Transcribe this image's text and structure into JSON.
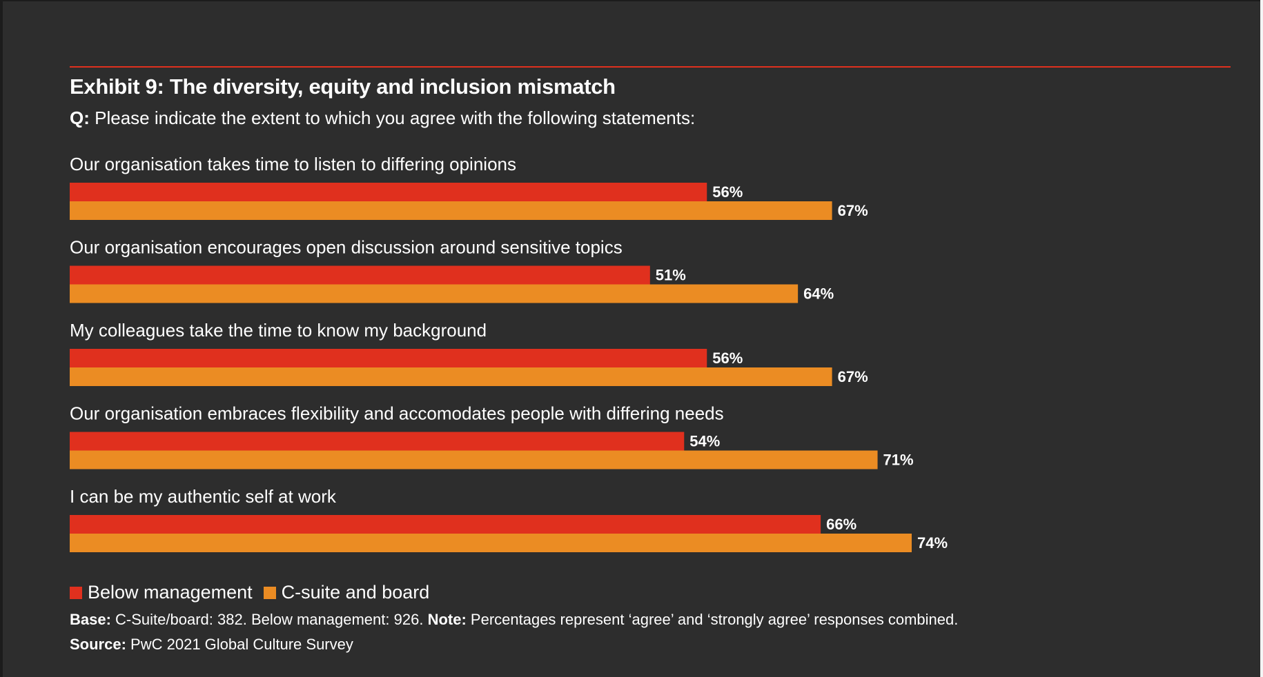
{
  "colors": {
    "background": "#2d2d2d",
    "rule": "#e0301e",
    "below_management": "#e0301e",
    "csuite_board": "#eb8c23",
    "text": "#ffffff"
  },
  "header": {
    "title": "Exhibit 9: The diversity, equity and inclusion mismatch",
    "question_prefix": "Q:",
    "question_text": "Please indicate the extent to which you agree with the following statements:"
  },
  "chart_data": {
    "type": "bar",
    "orientation": "horizontal",
    "categories": [
      "Our organisation takes time to listen to differing opinions",
      "Our organisation encourages open discussion around sensitive topics",
      "My colleagues take the time to know my background",
      "Our organisation embraces flexibility and accomodates people with differing needs",
      "I can be my authentic self at work"
    ],
    "series": [
      {
        "name": "Below management",
        "values": [
          56,
          51,
          56,
          54,
          66
        ]
      },
      {
        "name": "C-suite and board",
        "values": [
          67,
          64,
          67,
          71,
          74
        ]
      }
    ],
    "value_suffix": "%",
    "xlim": [
      0,
      74
    ],
    "grid": false,
    "legend_position": "bottom-left",
    "title": "Exhibit 9: The diversity, equity and inclusion mismatch"
  },
  "legend": {
    "below_management": "Below management",
    "csuite_board": "C-suite and board"
  },
  "footer": {
    "base_label": "Base:",
    "base_text": "C-Suite/board: 382. Below management: 926.",
    "note_label": "Note:",
    "note_text": "Percentages represent ‘agree’ and ‘strongly agree’ responses combined.",
    "source_label": "Source:",
    "source_text": "PwC 2021 Global Culture Survey"
  }
}
